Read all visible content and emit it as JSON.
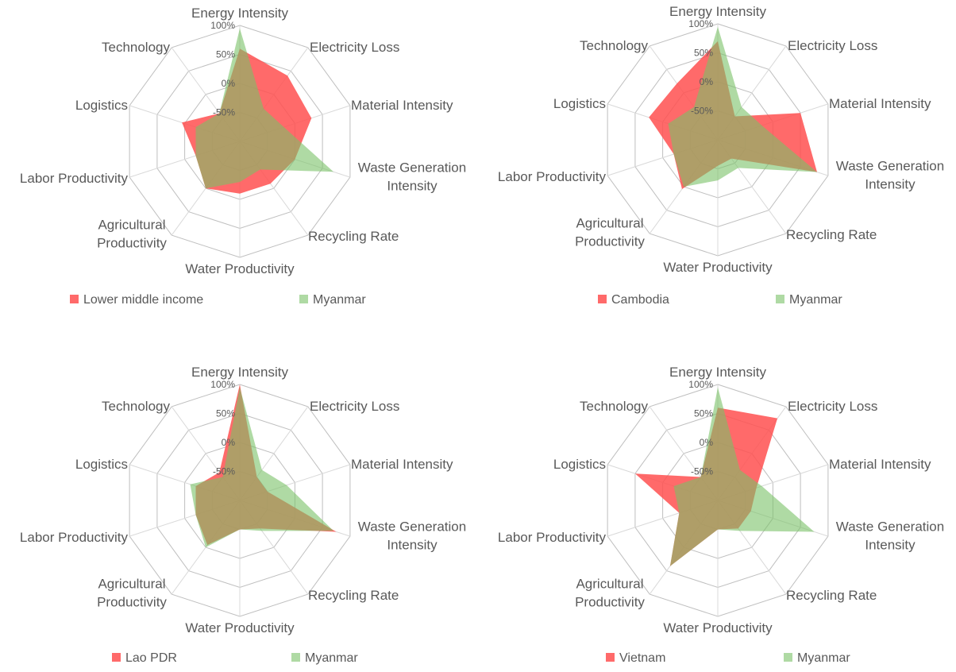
{
  "chart_data": [
    {
      "type": "radar",
      "axes": [
        "Energy Intensity",
        "Electricity Loss",
        "Material Intensity",
        "Waste Generation Intensity",
        "Recycling Rate",
        "Water Productivity",
        "Agricultural Productivity",
        "Labor Productivity",
        "Logistics",
        "Technology"
      ],
      "rlim": [
        -100,
        100
      ],
      "ticks": [
        "-50%",
        "0%",
        "50%",
        "100%"
      ],
      "series": [
        {
          "name": "Lower middle income",
          "color": "#ff5050",
          "values": [
            60,
            40,
            30,
            0,
            -10,
            -10,
            0,
            -20,
            5,
            -40
          ]
        },
        {
          "name": "Myanmar",
          "color": "#79c267",
          "values": [
            95,
            -30,
            -20,
            70,
            -40,
            -30,
            0,
            -20,
            -20,
            -40
          ]
        }
      ]
    },
    {
      "type": "radar",
      "axes": [
        "Energy Intensity",
        "Electricity Loss",
        "Material Intensity",
        "Waste Generation Intensity",
        "Recycling Rate",
        "Water Productivity",
        "Agricultural Productivity",
        "Labor Productivity",
        "Logistics",
        "Technology"
      ],
      "rlim": [
        -100,
        100
      ],
      "ticks": [
        "-50%",
        "0%",
        "50%",
        "100%"
      ],
      "series": [
        {
          "name": "Cambodia",
          "color": "#ff5050",
          "values": [
            70,
            -50,
            50,
            80,
            -60,
            -55,
            5,
            -20,
            25,
            20
          ]
        },
        {
          "name": "Myanmar",
          "color": "#79c267",
          "values": [
            95,
            -30,
            -20,
            80,
            -40,
            -30,
            0,
            -20,
            -10,
            -30
          ]
        }
      ]
    },
    {
      "type": "radar",
      "axes": [
        "Energy Intensity",
        "Electricity Loss",
        "Material Intensity",
        "Waste Generation Intensity",
        "Recycling Rate",
        "Water Productivity",
        "Agricultural Productivity",
        "Labor Productivity",
        "Logistics",
        "Technology"
      ],
      "rlim": [
        -100,
        100
      ],
      "ticks": [
        "-50%",
        "0%",
        "50%",
        "100%"
      ],
      "series": [
        {
          "name": "Lao PDR",
          "color": "#ff5050",
          "values": [
            100,
            -50,
            -50,
            75,
            -40,
            -50,
            -5,
            -20,
            -20,
            -40
          ]
        },
        {
          "name": "Myanmar",
          "color": "#79c267",
          "values": [
            95,
            -35,
            -15,
            70,
            -35,
            -50,
            0,
            -20,
            -10,
            -50
          ]
        }
      ]
    },
    {
      "type": "radar",
      "axes": [
        "Energy Intensity",
        "Electricity Loss",
        "Material Intensity",
        "Waste Generation Intensity",
        "Recycling Rate",
        "Water Productivity",
        "Agricultural Productivity",
        "Labor Productivity",
        "Logistics",
        "Technology"
      ],
      "rlim": [
        -100,
        100
      ],
      "ticks": [
        "-50%",
        "0%",
        "50%",
        "100%"
      ],
      "series": [
        {
          "name": "Vietnam",
          "color": "#ff5050",
          "values": [
            60,
            75,
            -30,
            -40,
            -40,
            -50,
            40,
            -30,
            50,
            -50
          ]
        },
        {
          "name": "Myanmar",
          "color": "#79c267",
          "values": [
            95,
            -35,
            -20,
            75,
            -35,
            -50,
            40,
            -30,
            -20,
            -50
          ]
        }
      ]
    }
  ]
}
